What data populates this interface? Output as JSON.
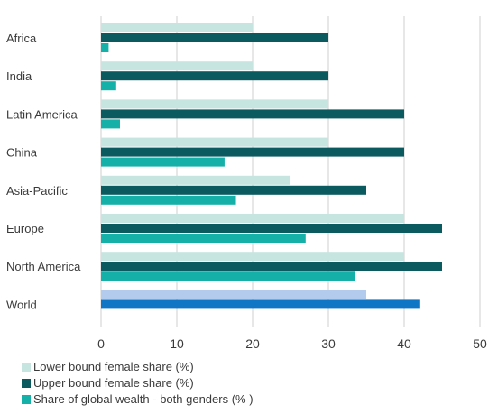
{
  "chart_data": {
    "type": "bar",
    "orientation": "horizontal",
    "categories": [
      "Africa",
      "India",
      "Latin America",
      "China",
      "Asia-Pacific",
      "Europe",
      "North America",
      "World"
    ],
    "series": [
      {
        "name": "Lower bound female share (%)",
        "color": "#c6e4e0",
        "values": [
          20,
          20,
          30,
          30,
          25,
          40,
          40,
          35
        ]
      },
      {
        "name": "Upper bound female share (%)",
        "color": "#0b5a5f",
        "values": [
          30,
          30,
          40,
          40,
          35,
          45,
          45,
          42
        ]
      },
      {
        "name": "Share of global wealth - both genders (% )",
        "color": "#15b1a9",
        "values": [
          1,
          2,
          2.5,
          16.3,
          17.8,
          27,
          33.5,
          null
        ]
      }
    ],
    "world_colors": {
      "lower": "#b3cbec",
      "upper": "#0e76c5"
    },
    "xticks": [
      0,
      10,
      20,
      30,
      40,
      50
    ],
    "xlim": [
      0,
      50
    ],
    "grid": "vertical"
  }
}
